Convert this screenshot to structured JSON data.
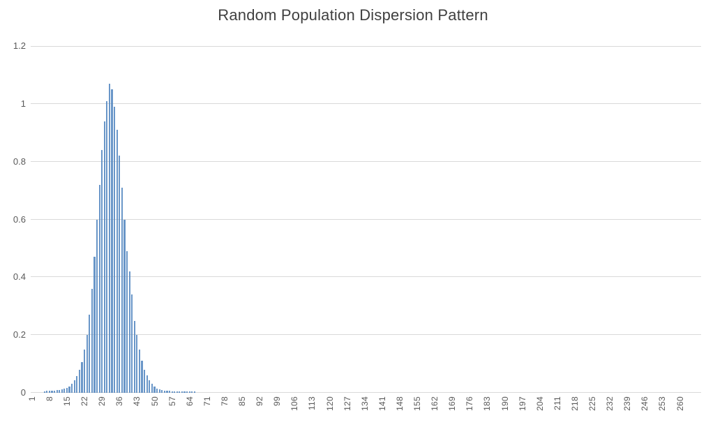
{
  "chart": {
    "title": "Random Population Dispersion Pattern"
  },
  "chart_data": {
    "type": "bar",
    "title": "Random Population Dispersion Pattern",
    "xlabel": "",
    "ylabel": "",
    "legend": false,
    "grid": true,
    "ylim": [
      0,
      1.2
    ],
    "y_ticks": [
      0,
      0.2,
      0.4,
      0.6,
      0.8,
      1,
      1.2
    ],
    "y_tick_labels": [
      "0",
      "0.2",
      "0.4",
      "0.6",
      "0.8",
      "1",
      "1.2"
    ],
    "x_start": 1,
    "x_label_step": 7,
    "num_categories": 268,
    "x_tick_labels": [
      "1",
      "8",
      "15",
      "22",
      "29",
      "36",
      "43",
      "50",
      "57",
      "64",
      "71",
      "78",
      "85",
      "92",
      "99",
      "106",
      "113",
      "120",
      "127",
      "134",
      "141",
      "148",
      "155",
      "162",
      "169",
      "176",
      "183",
      "190",
      "197",
      "204",
      "211",
      "218",
      "225",
      "232",
      "239",
      "246",
      "253",
      "260"
    ],
    "colors": {
      "bar": "#4F84BE",
      "bar_apparent": "#6996C8",
      "gridline": "#D9D9D9",
      "axis_line": "#D9D9D9",
      "tick_label": "#595959",
      "title": "#404040"
    },
    "values": [
      0,
      0,
      0,
      0,
      0,
      0.006,
      0.007,
      0.007,
      0.008,
      0.008,
      0.009,
      0.01,
      0.011,
      0.014,
      0.018,
      0.023,
      0.031,
      0.043,
      0.058,
      0.079,
      0.107,
      0.15,
      0.2,
      0.27,
      0.36,
      0.47,
      0.6,
      0.72,
      0.84,
      0.94,
      1.01,
      1.07,
      1.05,
      0.99,
      0.91,
      0.82,
      0.71,
      0.6,
      0.49,
      0.42,
      0.34,
      0.25,
      0.2,
      0.15,
      0.11,
      0.08,
      0.06,
      0.043,
      0.031,
      0.022,
      0.015,
      0.012,
      0.01,
      0.008,
      0.007,
      0.007,
      0.006,
      0.006,
      0.006,
      0.005,
      0.005,
      0.005,
      0.005,
      0.005,
      0.005,
      0.005,
      0,
      0,
      0,
      0,
      0,
      0,
      0,
      0,
      0,
      0,
      0,
      0,
      0,
      0,
      0,
      0,
      0,
      0,
      0,
      0,
      0,
      0,
      0,
      0,
      0,
      0,
      0,
      0,
      0,
      0,
      0,
      0,
      0,
      0,
      0,
      0,
      0,
      0,
      0,
      0,
      0,
      0,
      0,
      0,
      0,
      0,
      0,
      0,
      0,
      0,
      0,
      0,
      0,
      0,
      0,
      0,
      0,
      0,
      0,
      0,
      0,
      0,
      0,
      0,
      0,
      0,
      0,
      0,
      0,
      0,
      0,
      0,
      0,
      0,
      0,
      0,
      0,
      0,
      0,
      0,
      0,
      0,
      0,
      0,
      0,
      0,
      0,
      0,
      0,
      0,
      0,
      0,
      0,
      0,
      0,
      0,
      0,
      0,
      0,
      0,
      0,
      0,
      0,
      0,
      0,
      0,
      0,
      0,
      0,
      0,
      0,
      0,
      0,
      0,
      0,
      0,
      0,
      0,
      0,
      0,
      0,
      0,
      0,
      0,
      0,
      0,
      0,
      0,
      0,
      0,
      0,
      0,
      0,
      0,
      0,
      0,
      0,
      0,
      0,
      0,
      0,
      0,
      0,
      0,
      0,
      0,
      0,
      0,
      0,
      0,
      0,
      0,
      0,
      0,
      0,
      0,
      0,
      0,
      0,
      0,
      0,
      0,
      0,
      0,
      0,
      0,
      0,
      0,
      0,
      0,
      0,
      0,
      0,
      0,
      0,
      0,
      0,
      0,
      0,
      0,
      0,
      0,
      0,
      0,
      0,
      0,
      0,
      0,
      0,
      0,
      0,
      0,
      0,
      0,
      0,
      0,
      0,
      0,
      0,
      0,
      0,
      0
    ]
  }
}
